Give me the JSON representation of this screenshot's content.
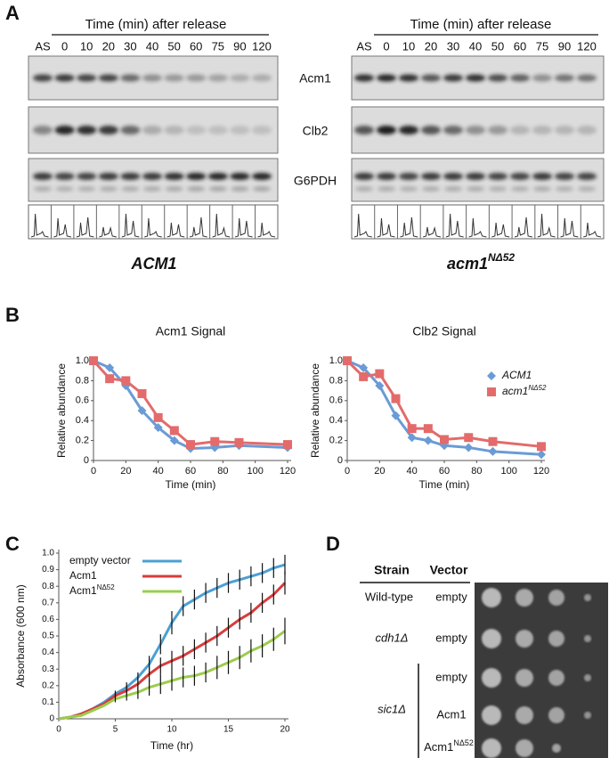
{
  "panel_a": {
    "label": "A",
    "header": "Time (min) after release",
    "lanes": [
      "AS",
      "0",
      "10",
      "20",
      "30",
      "40",
      "50",
      "60",
      "75",
      "90",
      "120"
    ],
    "rows": [
      "Acm1",
      "Clb2",
      "G6PDH"
    ],
    "left_strain": "ACM1",
    "right_strain": "acm1",
    "right_strain_sup": "NΔ52"
  },
  "panel_b": {
    "label": "B"
  },
  "panel_c": {
    "label": "C"
  },
  "panel_d": {
    "label": "D",
    "headers": [
      "Strain",
      "Vector"
    ],
    "rows": [
      {
        "strain": "Wild-type",
        "vector": "empty"
      },
      {
        "strain": "cdh1Δ",
        "vector": "empty"
      },
      {
        "vector": "empty"
      },
      {
        "vector": "Acm1"
      },
      {
        "vector": "Acm1",
        "vector_sup": "NΔ52"
      }
    ],
    "group": "sic1Δ"
  },
  "chart_data": [
    {
      "type": "line",
      "title": "Acm1 Signal",
      "xlabel": "Time (min)",
      "ylabel": "Relative abundance",
      "x": [
        0,
        10,
        20,
        30,
        40,
        50,
        60,
        75,
        90,
        120
      ],
      "xlim": [
        0,
        120
      ],
      "xticks": [
        0,
        20,
        40,
        60,
        80,
        100,
        120
      ],
      "ylim": [
        0,
        1
      ],
      "yticks": [
        0,
        0.2,
        0.4,
        0.6,
        0.8,
        {
          "value": 1,
          "label": "1.0"
        }
      ],
      "legend": false,
      "series": [
        {
          "color": "#6b9bd6",
          "marker": "diamond",
          "values": [
            1.0,
            0.93,
            0.75,
            0.5,
            0.33,
            0.2,
            0.12,
            0.13,
            0.15,
            0.13
          ]
        },
        {
          "color": "#e36b6b",
          "marker": "square",
          "values": [
            1.0,
            0.82,
            0.8,
            0.67,
            0.43,
            0.3,
            0.16,
            0.19,
            0.18,
            0.16
          ]
        }
      ]
    },
    {
      "type": "line",
      "title": "Clb2 Signal",
      "xlabel": "Time (min)",
      "ylabel": "Relative abundance",
      "x": [
        0,
        10,
        20,
        30,
        40,
        50,
        60,
        75,
        90,
        120
      ],
      "xlim": [
        0,
        120
      ],
      "xticks": [
        0,
        20,
        40,
        60,
        80,
        100,
        120
      ],
      "ylim": [
        0,
        1
      ],
      "yticks": [
        0,
        0.2,
        0.4,
        0.6,
        0.8,
        {
          "value": 1,
          "label": "1.0"
        }
      ],
      "legend": "upper right",
      "legend_italic": true,
      "series": [
        {
          "name": "ACM1",
          "color": "#6b9bd6",
          "marker": "diamond",
          "values": [
            1.0,
            0.93,
            0.75,
            0.45,
            0.23,
            0.2,
            0.15,
            0.13,
            0.09,
            0.06
          ]
        },
        {
          "name": "acm1",
          "name_sup": "NΔ52",
          "color": "#e36b6b",
          "marker": "square",
          "values": [
            1.0,
            0.84,
            0.87,
            0.62,
            0.32,
            0.32,
            0.21,
            0.23,
            0.19,
            0.14
          ]
        }
      ]
    },
    {
      "type": "line",
      "xlabel": "Time (hr)",
      "ylabel": "Absorbance (600 nm)",
      "x": [
        0,
        1,
        2,
        3,
        4,
        5,
        6,
        7,
        8,
        9,
        10,
        11,
        12,
        13,
        14,
        15,
        16,
        17,
        18,
        19,
        20
      ],
      "xlim": [
        0,
        20
      ],
      "xticks": [
        0,
        5,
        10,
        15,
        20
      ],
      "ylim": [
        0,
        1
      ],
      "yticks": [
        0,
        0.1,
        0.2,
        0.3,
        0.4,
        0.5,
        0.6,
        0.7,
        0.8,
        0.9,
        {
          "value": 1,
          "label": "1.0"
        }
      ],
      "legend": "upper left",
      "series": [
        {
          "name": "empty vector",
          "color": "#4b9fd5",
          "values": [
            0,
            0.01,
            0.03,
            0.06,
            0.1,
            0.15,
            0.19,
            0.25,
            0.33,
            0.45,
            0.58,
            0.68,
            0.72,
            0.76,
            0.79,
            0.82,
            0.84,
            0.86,
            0.88,
            0.91,
            0.93
          ],
          "errors": [
            null,
            null,
            null,
            null,
            null,
            0.02,
            0.03,
            0.03,
            0.05,
            0.06,
            0.07,
            0.06,
            0.06,
            0.06,
            0.06,
            0.06,
            0.06,
            0.06,
            0.06,
            0.06,
            0.06
          ]
        },
        {
          "name": "Acm1",
          "color": "#d83c3c",
          "values": [
            0,
            0.01,
            0.03,
            0.06,
            0.09,
            0.14,
            0.17,
            0.21,
            0.27,
            0.32,
            0.35,
            0.38,
            0.42,
            0.46,
            0.5,
            0.55,
            0.6,
            0.64,
            0.7,
            0.75,
            0.82
          ],
          "errors": [
            null,
            null,
            null,
            null,
            null,
            0.02,
            0.03,
            0.04,
            0.05,
            0.05,
            0.06,
            0.06,
            0.06,
            0.06,
            0.06,
            0.06,
            0.06,
            0.06,
            0.06,
            0.06,
            0.07
          ]
        },
        {
          "name": "Acm1",
          "name_sup": "NΔ52",
          "color": "#9ccc4c",
          "values": [
            0,
            0.01,
            0.02,
            0.05,
            0.08,
            0.12,
            0.14,
            0.16,
            0.19,
            0.21,
            0.23,
            0.25,
            0.26,
            0.28,
            0.31,
            0.34,
            0.37,
            0.41,
            0.44,
            0.48,
            0.53
          ],
          "errors": [
            null,
            null,
            null,
            null,
            null,
            0.02,
            0.03,
            0.04,
            0.05,
            0.06,
            0.06,
            0.06,
            0.06,
            0.06,
            0.07,
            0.07,
            0.07,
            0.07,
            0.07,
            0.07,
            0.08
          ]
        }
      ]
    }
  ]
}
